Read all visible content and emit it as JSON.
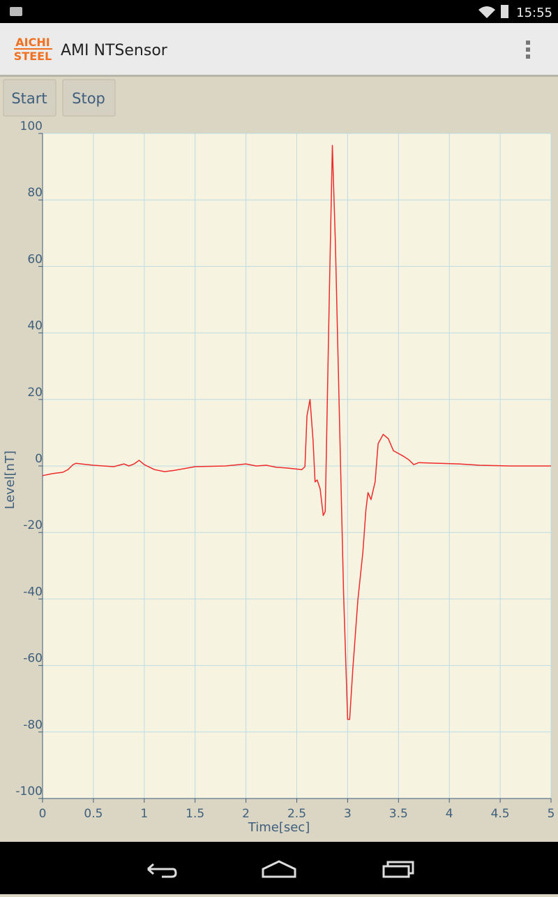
{
  "status_bar": {
    "time": "15:55"
  },
  "app_bar": {
    "logo": [
      "AICHI",
      "STEEL"
    ],
    "title": "AMI NTSensor"
  },
  "buttons": [
    "Start",
    "Stop"
  ],
  "chart_data": {
    "type": "line",
    "x_label": "Time[sec]",
    "y_label": "Level[nT]",
    "xlim": [
      0,
      5
    ],
    "ylim": [
      -100,
      100
    ],
    "xticks": [
      0,
      0.5,
      1,
      1.5,
      2,
      2.5,
      3,
      3.5,
      4,
      4.5,
      5
    ],
    "yticks": [
      -100,
      -80,
      -60,
      -40,
      -20,
      0,
      20,
      40,
      60,
      80,
      100
    ],
    "grid": true,
    "x": [
      0,
      0.1,
      0.2,
      0.25,
      0.3,
      0.33,
      0.5,
      0.7,
      0.8,
      0.85,
      0.9,
      0.95,
      1.0,
      1.1,
      1.2,
      1.3,
      1.5,
      1.8,
      2.0,
      2.1,
      2.2,
      2.3,
      2.4,
      2.55,
      2.58,
      2.6,
      2.63,
      2.66,
      2.68,
      2.7,
      2.73,
      2.76,
      2.78,
      2.82,
      2.85,
      2.88,
      2.92,
      2.96,
      3.0,
      3.02,
      3.05,
      3.1,
      3.15,
      3.18,
      3.2,
      3.23,
      3.27,
      3.3,
      3.35,
      3.4,
      3.45,
      3.55,
      3.6,
      3.65,
      3.7,
      3.9,
      4.1,
      4.3,
      4.6,
      5.0
    ],
    "series": [
      {
        "color": "#ee2a2a",
        "values": [
          -2.9,
          -2.3,
          -1.9,
          -1.1,
          0.4,
          0.8,
          0.2,
          -0.2,
          0.6,
          0,
          0.6,
          1.7,
          0.4,
          -1.1,
          -1.7,
          -1.3,
          -0.2,
          0,
          0.6,
          0,
          0.2,
          -0.4,
          -0.6,
          -1.1,
          -0.2,
          15.1,
          20,
          7.8,
          -4.8,
          -4.2,
          -6.9,
          -14.9,
          -13.7,
          51.9,
          96.4,
          66.6,
          14.1,
          -38.4,
          -76.2,
          -76.2,
          -61.5,
          -40.5,
          -25.8,
          -13.2,
          -8,
          -10.1,
          -4.8,
          6.7,
          9.5,
          8.2,
          4.6,
          2.9,
          1.9,
          0.4,
          1,
          0.8,
          0.6,
          0.2,
          0,
          0
        ]
      }
    ]
  }
}
